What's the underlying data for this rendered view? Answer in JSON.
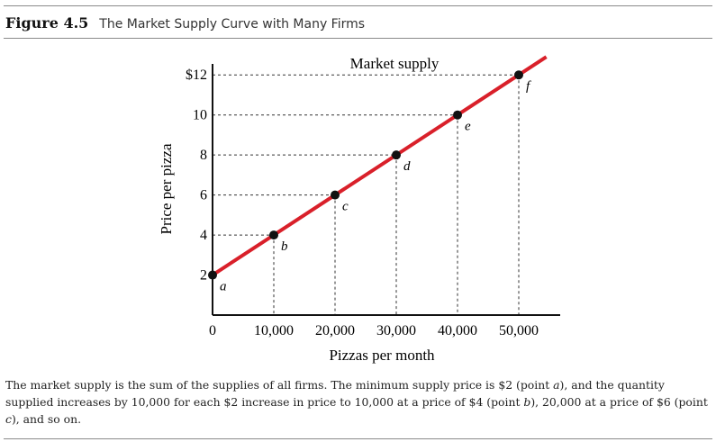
{
  "figure": {
    "number": "Figure 4.5",
    "title": "The Market Supply Curve with Many Firms"
  },
  "caption": {
    "p1": "The market supply is the sum of the supplies of all firms. The minimum supply price is $2 (point ",
    "a": "a",
    "p2": "), and the quantity supplied increases by 10,000 for each $2 increase in price to 10,000 at a price of $4 (point ",
    "b": "b",
    "p3": "), 20,000 at a price of $6 (point ",
    "c": "c",
    "p4": "), and so on."
  },
  "colors": {
    "curve": "#d9202a",
    "point": "#111111",
    "axis": "#111111"
  },
  "chart_data": {
    "type": "line",
    "curve_label": "Market supply",
    "xlabel": "Pizzas per month",
    "ylabel": "Price per pizza",
    "xlim": [
      0,
      57500
    ],
    "ylim": [
      0,
      13
    ],
    "x_ticks": [
      {
        "value": 0,
        "label": "0"
      },
      {
        "value": 10000,
        "label": "10,000"
      },
      {
        "value": 20000,
        "label": "20,000"
      },
      {
        "value": 30000,
        "label": "30,000"
      },
      {
        "value": 40000,
        "label": "40,000"
      },
      {
        "value": 50000,
        "label": "50,000"
      }
    ],
    "y_ticks": [
      {
        "value": 2,
        "label": "2"
      },
      {
        "value": 4,
        "label": "4"
      },
      {
        "value": 6,
        "label": "6"
      },
      {
        "value": 8,
        "label": "8"
      },
      {
        "value": 10,
        "label": "10"
      },
      {
        "value": 12,
        "label": "$12"
      }
    ],
    "line": {
      "x": [
        0,
        54500
      ],
      "y": [
        2,
        12.9
      ]
    },
    "points": [
      {
        "label": "a",
        "x": 0,
        "y": 2
      },
      {
        "label": "b",
        "x": 10000,
        "y": 4
      },
      {
        "label": "c",
        "x": 20000,
        "y": 6
      },
      {
        "label": "d",
        "x": 30000,
        "y": 8
      },
      {
        "label": "e",
        "x": 40000,
        "y": 10
      },
      {
        "label": "f",
        "x": 50000,
        "y": 12
      }
    ],
    "grid": false
  }
}
